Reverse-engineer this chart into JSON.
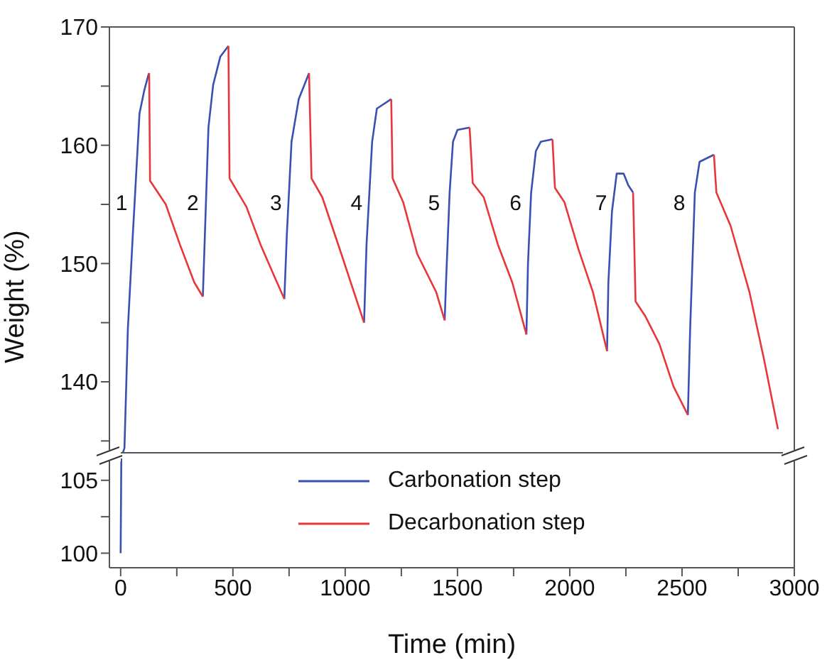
{
  "chart_data": [
    {
      "type": "line",
      "ylabel": "Weight (%)",
      "xlim": [
        -50,
        3000
      ],
      "ylim": [
        134,
        170
      ],
      "yticks": [
        {
          "value": 135,
          "label": null
        },
        140,
        {
          "value": 145,
          "label": null
        },
        150,
        {
          "value": 155,
          "label": null
        },
        160,
        {
          "value": 165,
          "label": null
        },
        170
      ],
      "tick_labels": "y",
      "legend": "bottom",
      "series": [
        {
          "name": "Carbonation step",
          "color": "#3a4fb0",
          "x": [
            10,
            17,
            32,
            53,
            74,
            84,
            106,
            123,
            127,
            null,
            366,
            391,
            412,
            444,
            480,
            null,
            729,
            740,
            761,
            793,
            839,
            null,
            1084,
            1095,
            1120,
            1141,
            1205,
            null,
            1443,
            1449,
            1465,
            1480,
            1500,
            1554,
            null,
            1807,
            1814,
            1828,
            1849,
            1871,
            1923,
            null,
            2166,
            2172,
            2188,
            2209,
            2240,
            2261,
            2282,
            null,
            2526,
            2536,
            2557,
            2578,
            2642
          ],
          "values": [
            134,
            134.4,
            144.4,
            152,
            159.2,
            162.7,
            164.7,
            165.9,
            166.1,
            null,
            147.2,
            161.5,
            165.1,
            167.5,
            168.4,
            null,
            147,
            152.4,
            160.3,
            163.9,
            166.1,
            null,
            145,
            151.6,
            160.3,
            163.1,
            163.9,
            null,
            145.2,
            148.4,
            156,
            160.3,
            161.3,
            161.5,
            null,
            144,
            150,
            156,
            159.5,
            160.3,
            160.5,
            null,
            142.6,
            148.4,
            154.4,
            157.6,
            157.6,
            156.6,
            156,
            null,
            137.2,
            144.4,
            156,
            158.6,
            159.2
          ]
        },
        {
          "name": "Decarbonation step",
          "color": "#e8373a",
          "x": [
            127,
            131,
            201,
            264,
            328,
            366,
            null,
            480,
            485,
            560,
            623,
            687,
            729,
            null,
            839,
            850,
            898,
            983,
            1084,
            null,
            1205,
            1211,
            1258,
            1321,
            1405,
            1443,
            null,
            1554,
            1568,
            1617,
            1680,
            1744,
            1807,
            null,
            1923,
            1934,
            1976,
            2039,
            2103,
            2166,
            null,
            2282,
            2293,
            2335,
            2399,
            2462,
            2526,
            null,
            2642,
            2653,
            2716,
            2800,
            2864,
            2927
          ],
          "values": [
            166.1,
            157,
            155,
            151.6,
            148.4,
            147.2,
            null,
            168.4,
            157.2,
            154.8,
            151.6,
            148.8,
            147,
            null,
            166.1,
            157.2,
            155.6,
            150.8,
            145,
            null,
            163.9,
            157.2,
            155.2,
            150.8,
            147.6,
            145.2,
            null,
            161.5,
            156.8,
            155.6,
            151.6,
            148.4,
            144,
            null,
            160.5,
            156.4,
            155.2,
            151.2,
            147.6,
            142.6,
            null,
            156,
            146.8,
            145.6,
            143.2,
            139.6,
            137.2,
            null,
            159.2,
            156,
            153.2,
            147.6,
            142,
            136
          ]
        }
      ],
      "annotations": [
        "1",
        "2",
        "3",
        "4",
        "5",
        "6",
        "7",
        "8"
      ]
    },
    {
      "type": "line",
      "xlabel": "Time (min)",
      "xlim": [
        -50,
        3000
      ],
      "xticks": [
        0,
        {
          "value": 250,
          "label": null
        },
        500,
        {
          "value": 750,
          "label": null
        },
        1000,
        {
          "value": 1250,
          "label": null
        },
        1500,
        {
          "value": 1750,
          "label": null
        },
        2000,
        {
          "value": 2250,
          "label": null
        },
        2500,
        {
          "value": 2750,
          "label": null
        },
        3000
      ],
      "ylim": [
        99,
        106.5
      ],
      "yticks": [
        100,
        {
          "value": 102.5,
          "label": null
        },
        105
      ],
      "series": [
        {
          "color": "#3a4fb0",
          "x": [
            0,
            3
          ],
          "values": [
            100,
            106.5
          ]
        }
      ]
    }
  ]
}
